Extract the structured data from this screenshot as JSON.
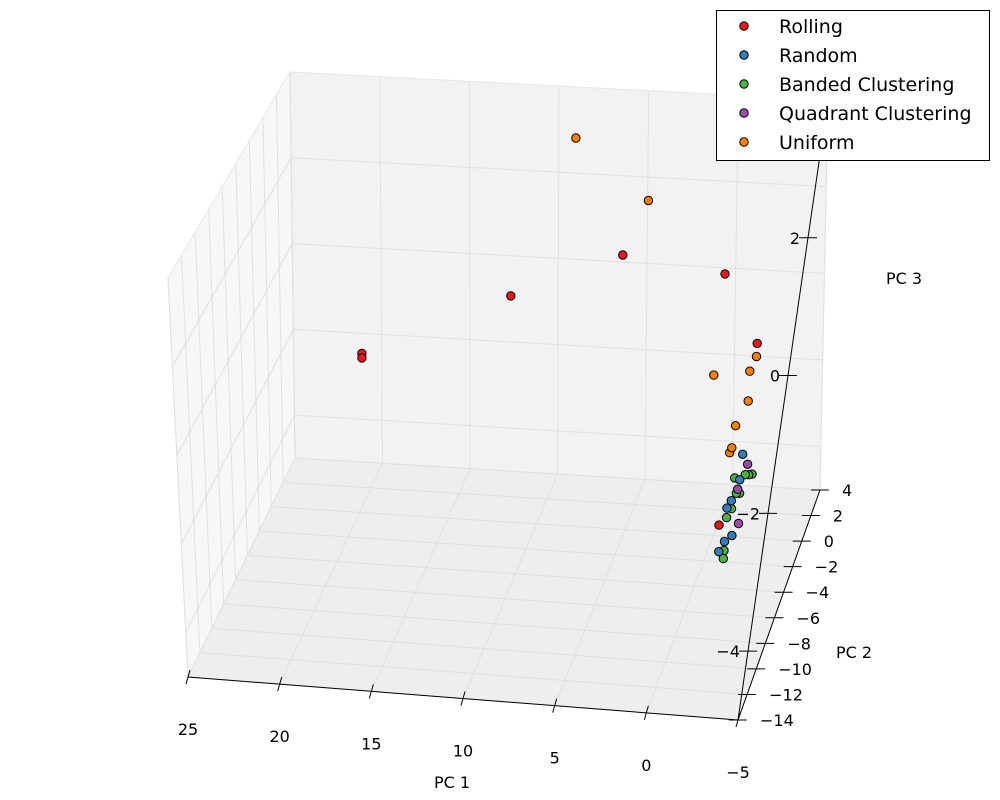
{
  "chart_data": {
    "type": "scatter",
    "projection": "3d",
    "grid": true,
    "legend_position": "top-right",
    "axes": {
      "x": {
        "label": "PC 1",
        "range": [
          -5,
          25
        ],
        "ticks": [
          25,
          20,
          15,
          10,
          5,
          0,
          -5
        ]
      },
      "y": {
        "label": "PC 2",
        "range": [
          -14,
          4
        ],
        "ticks": [
          -14,
          -12,
          -10,
          -8,
          -6,
          -4,
          -2,
          0,
          2,
          4
        ]
      },
      "z": {
        "label": "PC 3",
        "range": [
          -5,
          4
        ],
        "ticks": [
          2,
          0,
          -2,
          -4
        ]
      }
    },
    "series": [
      {
        "name": "Rolling",
        "color": "#e41a1c",
        "points": [
          [
            19.2,
            -2.0,
            -0.9
          ],
          [
            19.2,
            -2.0,
            -1.0
          ],
          [
            11.0,
            -3.0,
            0.5
          ],
          [
            5.1,
            -3.4,
            1.3
          ],
          [
            -1.0,
            -11.0,
            1.5
          ],
          [
            -3.2,
            -13.4,
            0.5
          ],
          [
            -2.0,
            -9.5,
            -2.8
          ],
          [
            -3.5,
            -10.0,
            3.9
          ]
        ]
      },
      {
        "name": "Random",
        "color": "#377eb8",
        "points": [
          [
            -2.0,
            -7.2,
            -2.9
          ],
          [
            -1.5,
            -5.5,
            -4.0
          ],
          [
            -1.8,
            -3.6,
            -4.1
          ],
          [
            -1.5,
            -0.4,
            -3.2
          ],
          [
            -1.6,
            -1.4,
            -3.5
          ],
          [
            -1.4,
            -2.4,
            -3.7
          ],
          [
            -1.6,
            -4.6,
            -4.0
          ]
        ]
      },
      {
        "name": "Banded Clustering",
        "color": "#4daf4a",
        "points": [
          [
            -2.0,
            -7.0,
            -3.1
          ],
          [
            -1.8,
            -5.6,
            -4.1
          ],
          [
            -1.5,
            -4.0,
            -4.3
          ],
          [
            -1.4,
            -2.2,
            -3.9
          ],
          [
            -1.2,
            -0.8,
            -3.6
          ],
          [
            -1.0,
            0.8,
            -4.3
          ],
          [
            -1.1,
            1.2,
            -4.4
          ],
          [
            -1.2,
            2.0,
            -4.2
          ],
          [
            -1.3,
            2.4,
            -4.3
          ],
          [
            -1.3,
            3.2,
            -4.5
          ]
        ]
      },
      {
        "name": "Quadrant Clustering",
        "color": "#984ea3",
        "points": [
          [
            -1.8,
            -0.4,
            -3.4
          ],
          [
            -2.0,
            -3.0,
            -4.0
          ],
          [
            -1.6,
            -1.8,
            -3.6
          ]
        ]
      },
      {
        "name": "Uniform",
        "color": "#ff7f00",
        "points": [
          [
            8.0,
            -2.2,
            3.6
          ],
          [
            4.1,
            -1.9,
            2.2
          ],
          [
            -3.0,
            -10.0,
            0.0
          ],
          [
            -2.6,
            -8.4,
            -0.4
          ],
          [
            -2.6,
            -7.6,
            -1.0
          ],
          [
            -0.5,
            -6.2,
            -0.7
          ],
          [
            -2.0,
            -7.0,
            -1.5
          ],
          [
            -1.8,
            -6.8,
            -2.0
          ],
          [
            -1.9,
            -6.9,
            -1.9
          ]
        ]
      }
    ]
  }
}
